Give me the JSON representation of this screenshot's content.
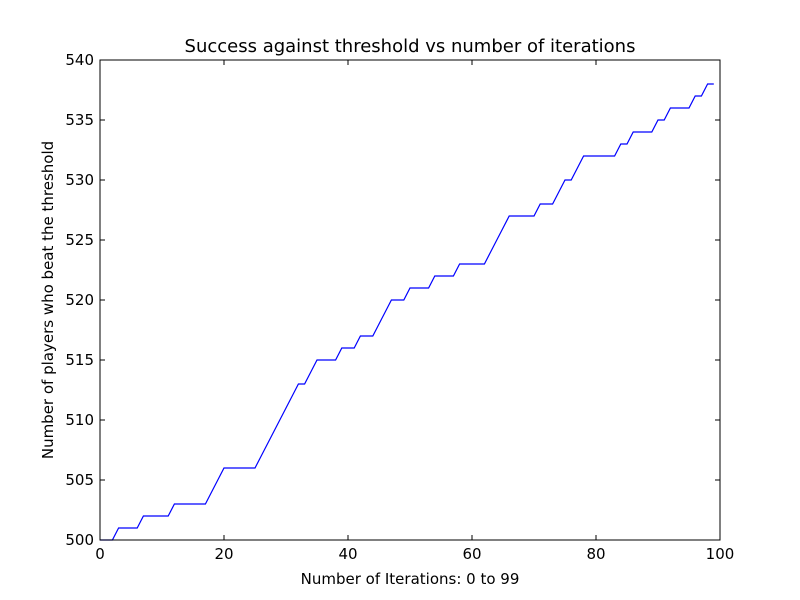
{
  "chart_data": {
    "type": "line",
    "title": "Success against threshold vs number of iterations",
    "xlabel": "Number of Iterations: 0 to 99",
    "ylabel": "Number of players who beat the threshold",
    "xlim": [
      0,
      100
    ],
    "ylim": [
      500,
      540
    ],
    "xticks": [
      0,
      20,
      40,
      60,
      80,
      100
    ],
    "yticks": [
      500,
      505,
      510,
      515,
      520,
      525,
      530,
      535,
      540
    ],
    "grid": false,
    "line_color": "#0000ff",
    "series": [
      {
        "x": [
          0,
          1,
          2,
          3,
          4,
          5,
          6,
          7,
          8,
          9,
          10,
          11,
          12,
          13,
          14,
          15,
          16,
          17,
          18,
          19,
          20,
          21,
          22,
          23,
          24,
          25,
          26,
          27,
          28,
          29,
          30,
          31,
          32,
          33,
          34,
          35,
          36,
          37,
          38,
          39,
          40,
          41,
          42,
          43,
          44,
          45,
          46,
          47,
          48,
          49,
          50,
          51,
          52,
          53,
          54,
          55,
          56,
          57,
          58,
          59,
          60,
          61,
          62,
          63,
          64,
          65,
          66,
          67,
          68,
          69,
          70,
          71,
          72,
          73,
          74,
          75,
          76,
          77,
          78,
          79,
          80,
          81,
          82,
          83,
          84,
          85,
          86,
          87,
          88,
          89,
          90,
          91,
          92,
          93,
          94,
          95,
          96,
          97,
          98,
          99
        ],
        "y": [
          500,
          500,
          500,
          501,
          501,
          501,
          501,
          502,
          502,
          502,
          502,
          502,
          503,
          503,
          503,
          503,
          503,
          503,
          504,
          505,
          506,
          506,
          506,
          506,
          506,
          506,
          507,
          508,
          509,
          510,
          511,
          512,
          513,
          513,
          514,
          515,
          515,
          515,
          515,
          516,
          516,
          516,
          517,
          517,
          517,
          518,
          519,
          520,
          520,
          520,
          521,
          521,
          521,
          521,
          522,
          522,
          522,
          522,
          523,
          523,
          523,
          523,
          523,
          524,
          525,
          526,
          527,
          527,
          527,
          527,
          527,
          528,
          528,
          528,
          529,
          530,
          530,
          531,
          532,
          532,
          532,
          532,
          532,
          532,
          533,
          533,
          534,
          534,
          534,
          534,
          535,
          535,
          536,
          536,
          536,
          536,
          537,
          537,
          538,
          538
        ]
      }
    ]
  }
}
